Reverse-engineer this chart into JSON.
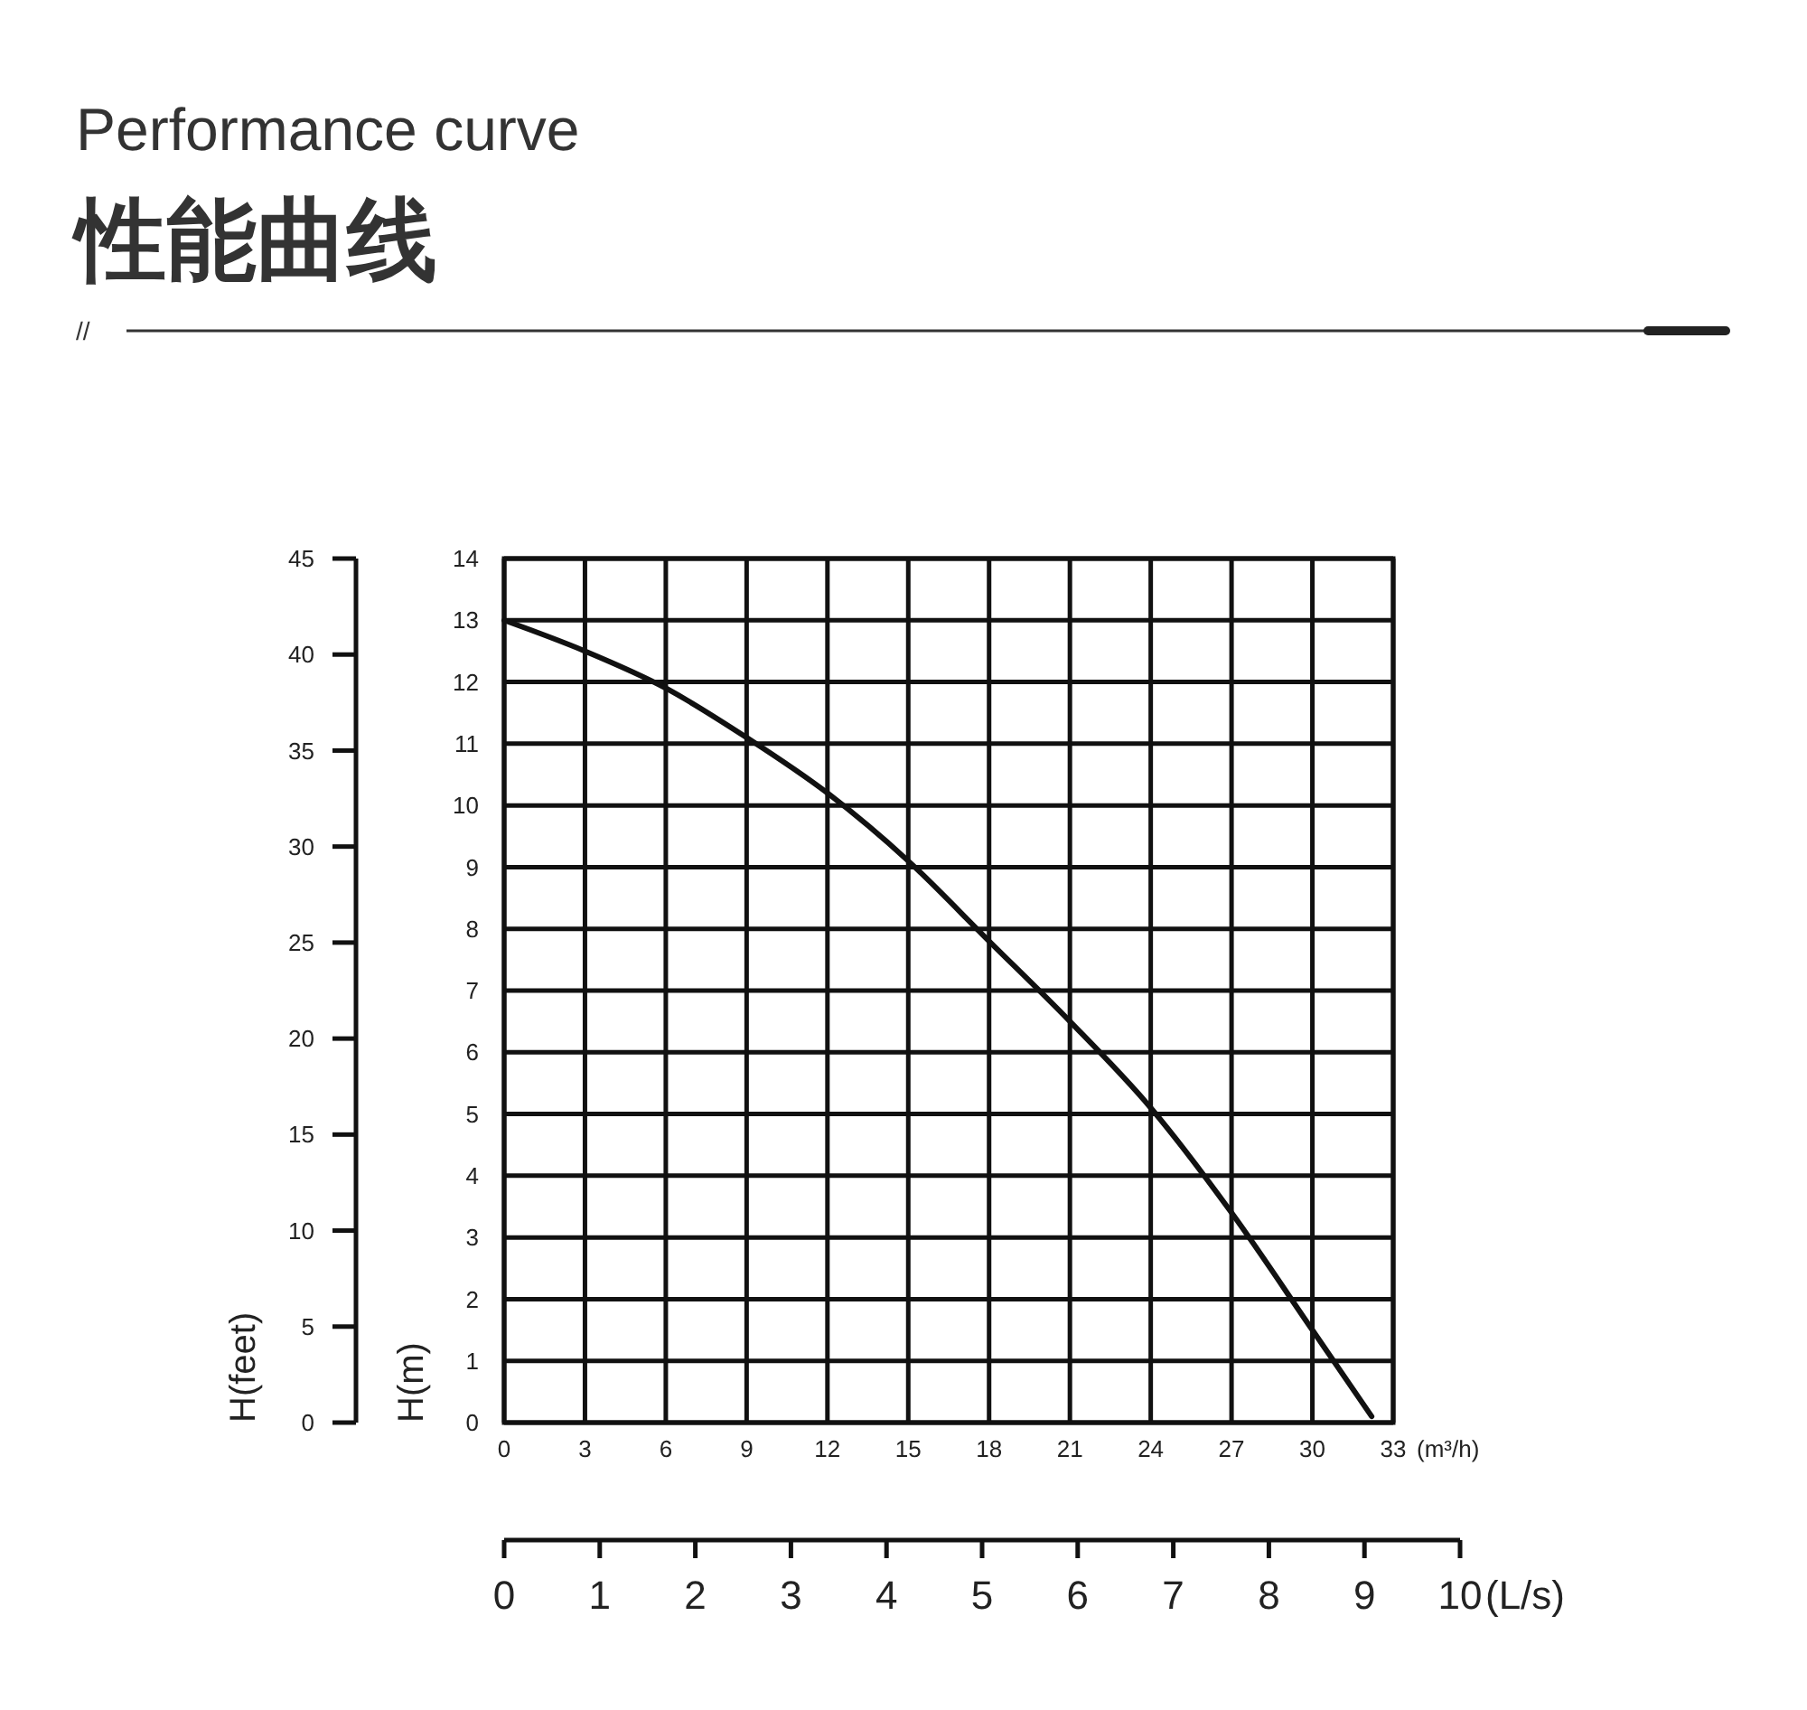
{
  "chart_data": {
    "type": "line",
    "title": "Performance curve",
    "subtitle": "性能曲线",
    "annotations": [
      "//"
    ],
    "xlabel": "(m³/h)",
    "ylabel": "H(m)",
    "y2label": "H(feet)",
    "x2label": "(L/s)",
    "x": [
      0,
      3,
      6,
      9,
      12,
      15,
      18,
      21,
      24,
      27,
      30,
      32.2
    ],
    "series": [
      {
        "color": "#111111",
        "values": [
          13,
          12.5,
          11.9,
          11.1,
          10.2,
          9.1,
          7.8,
          6.5,
          5.1,
          3.4,
          1.5,
          0.1
        ]
      }
    ],
    "xlim": [
      0,
      33
    ],
    "xticks": [
      0,
      3,
      6,
      9,
      12,
      15,
      18,
      21,
      24,
      27,
      30,
      33
    ],
    "ylim": [
      0,
      14
    ],
    "yticks": [
      0,
      1,
      2,
      3,
      4,
      5,
      6,
      7,
      8,
      9,
      10,
      11,
      12,
      13,
      14
    ],
    "y2lim": [
      0,
      45
    ],
    "y2ticks": [
      0,
      5,
      10,
      15,
      20,
      25,
      30,
      35,
      40,
      45
    ],
    "x2lim": [
      0,
      10
    ],
    "x2ticks": [
      0,
      1,
      2,
      3,
      4,
      5,
      6,
      7,
      8,
      9,
      10
    ],
    "grid": true,
    "marker": "none",
    "line_style": "solid"
  }
}
